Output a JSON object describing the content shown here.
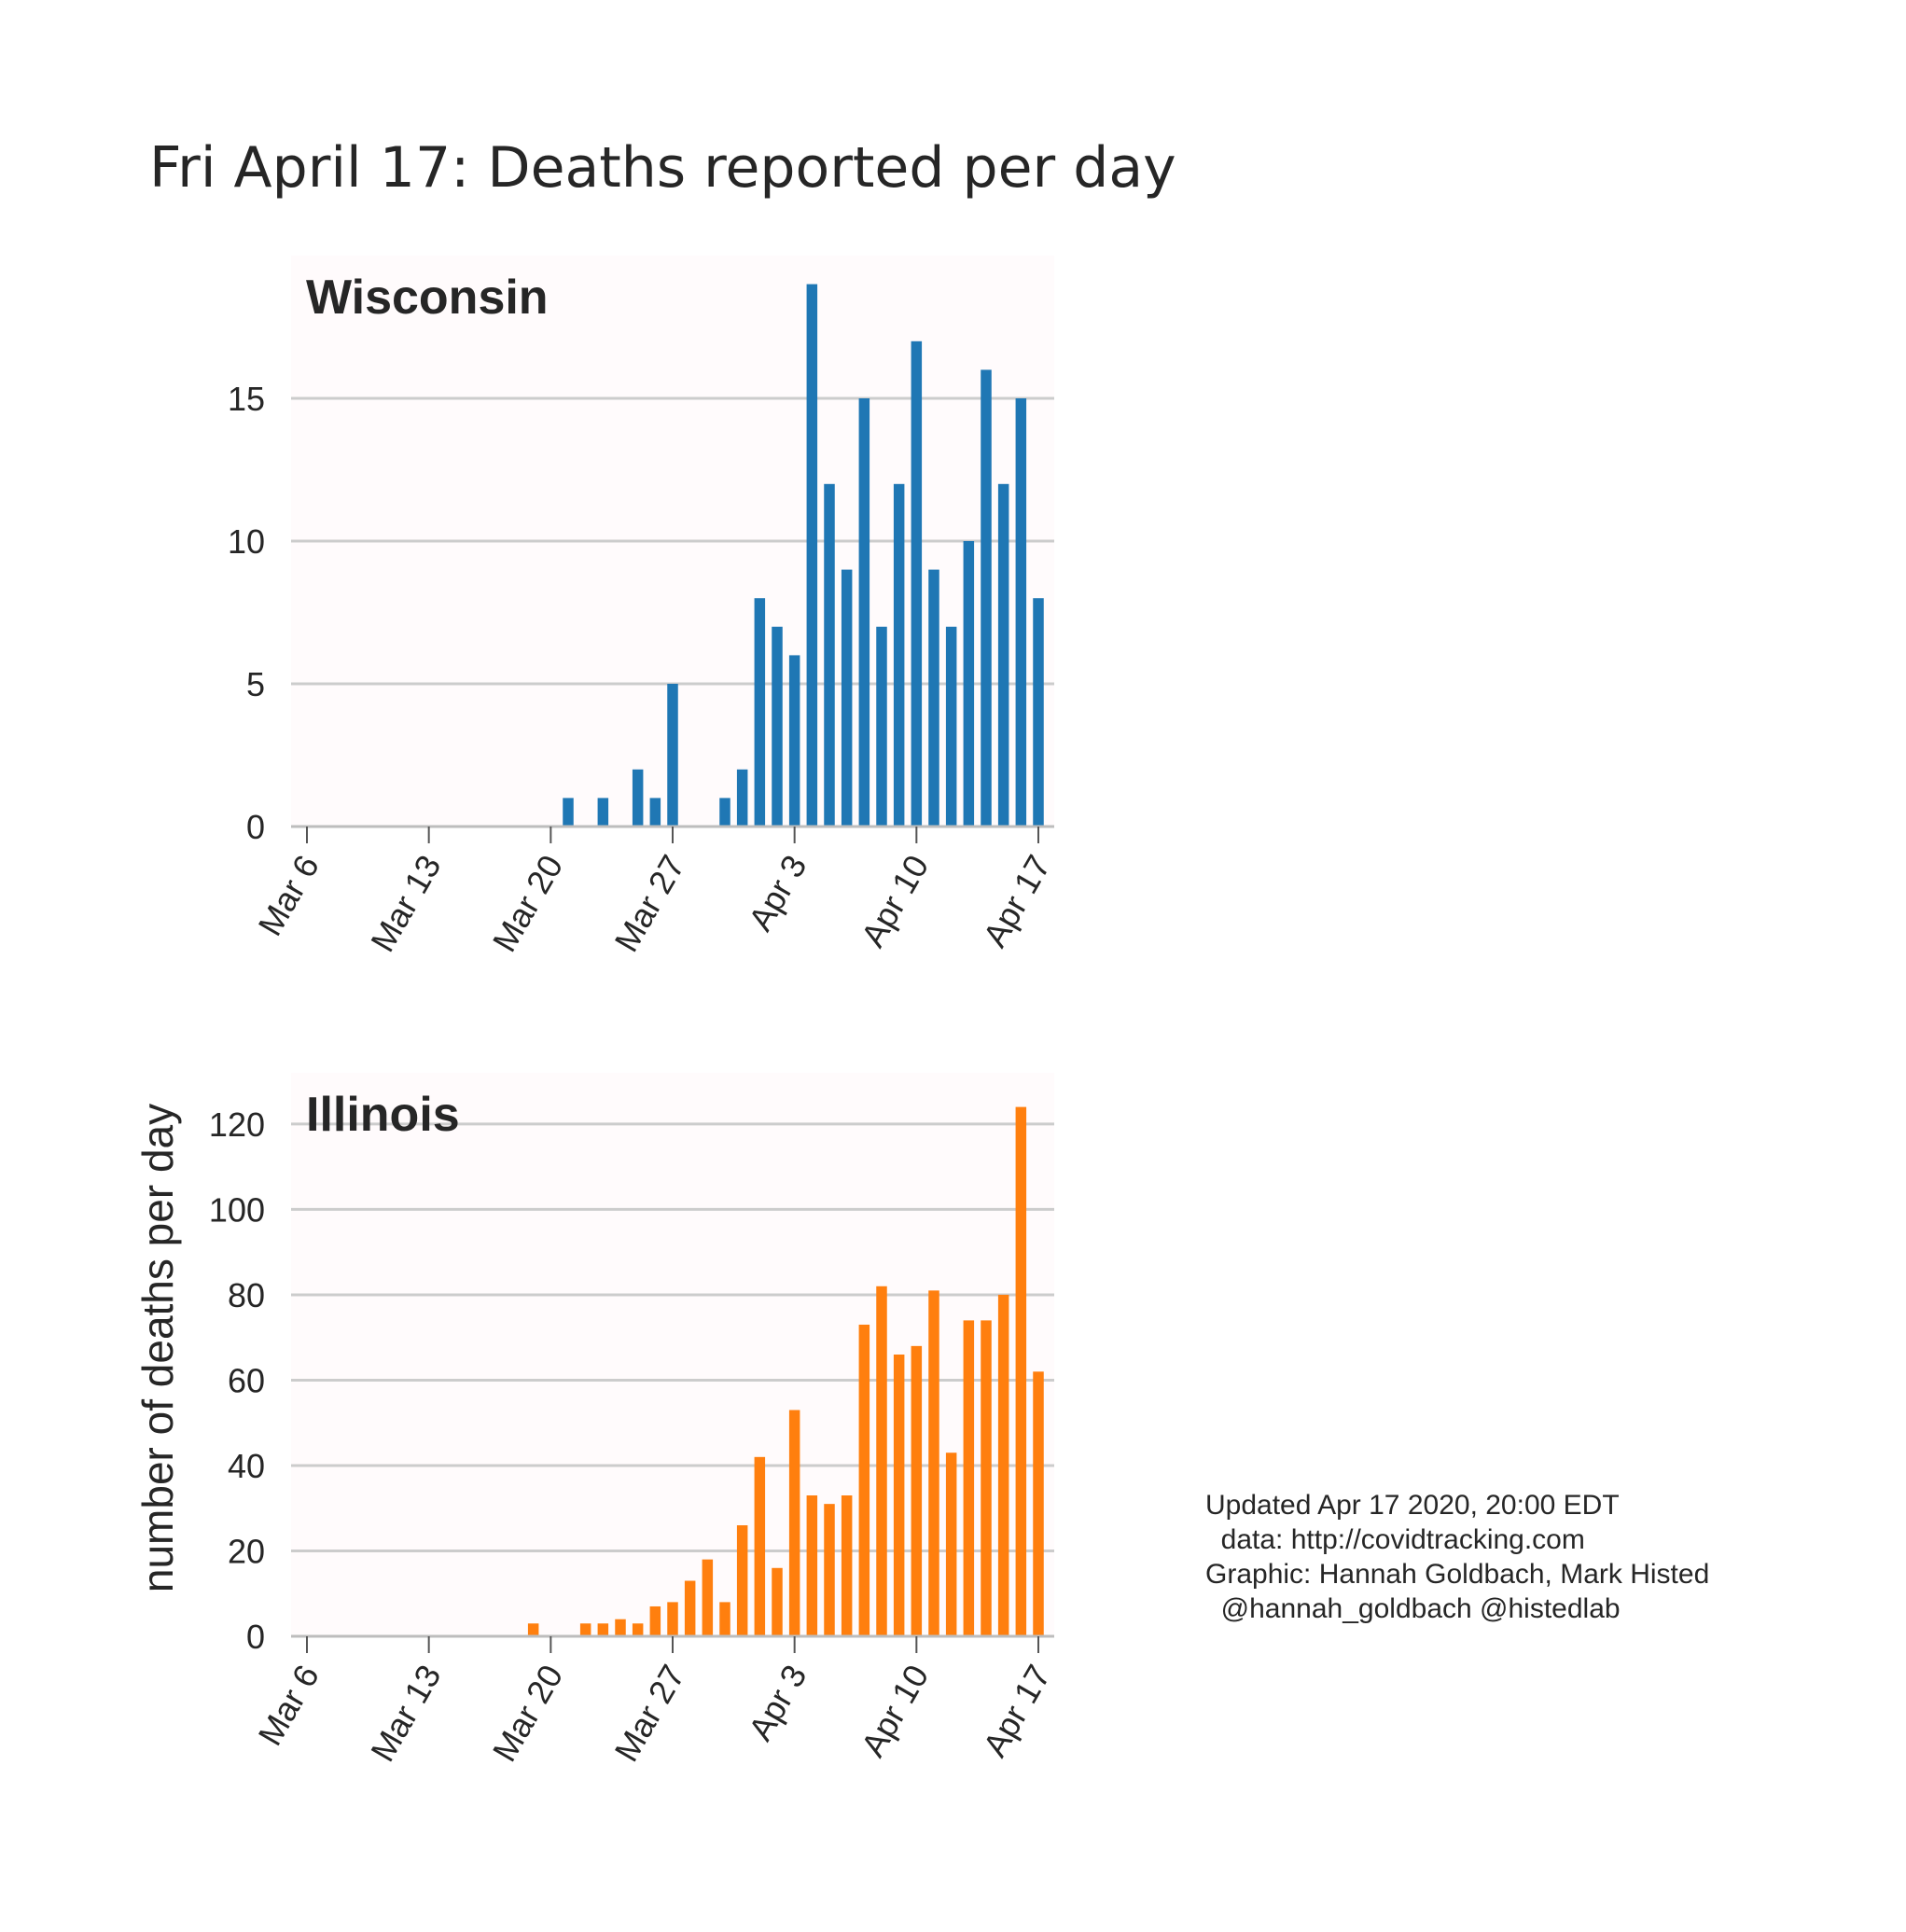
{
  "title": "Fri April 17: Deaths reported per day",
  "ylabel": "number of deaths per day",
  "credits": [
    "Updated Apr 17 2020, 20:00 EDT",
    "  data: http://covidtracking.com",
    "Graphic: Hannah Goldbach, Mark Histed",
    "  @hannah_goldbach @histedlab"
  ],
  "chart_data": [
    {
      "type": "bar",
      "title": "Wisconsin",
      "color": "#1f77b4",
      "background": "#fffbfc",
      "x": [
        "Mar 6",
        "Mar 7",
        "Mar 8",
        "Mar 9",
        "Mar 10",
        "Mar 11",
        "Mar 12",
        "Mar 13",
        "Mar 14",
        "Mar 15",
        "Mar 16",
        "Mar 17",
        "Mar 18",
        "Mar 19",
        "Mar 20",
        "Mar 21",
        "Mar 22",
        "Mar 23",
        "Mar 24",
        "Mar 25",
        "Mar 26",
        "Mar 27",
        "Mar 28",
        "Mar 29",
        "Mar 30",
        "Mar 31",
        "Apr 1",
        "Apr 2",
        "Apr 3",
        "Apr 4",
        "Apr 5",
        "Apr 6",
        "Apr 7",
        "Apr 8",
        "Apr 9",
        "Apr 10",
        "Apr 11",
        "Apr 12",
        "Apr 13",
        "Apr 14",
        "Apr 15",
        "Apr 16",
        "Apr 17"
      ],
      "values": [
        0,
        0,
        0,
        0,
        0,
        0,
        0,
        0,
        0,
        0,
        0,
        0,
        0,
        0,
        0,
        1,
        0,
        1,
        0,
        2,
        1,
        5,
        0,
        0,
        1,
        2,
        8,
        7,
        6,
        19,
        12,
        9,
        15,
        7,
        12,
        17,
        9,
        7,
        10,
        16,
        12,
        15,
        8
      ],
      "xticks": [
        "Mar 6",
        "Mar 13",
        "Mar 20",
        "Mar 27",
        "Apr 3",
        "Apr 10",
        "Apr 17"
      ],
      "yticks": [
        0,
        5,
        10,
        15
      ],
      "ylim": [
        0,
        20
      ],
      "grid": true
    },
    {
      "type": "bar",
      "title": "Illinois",
      "color": "#ff7f0e",
      "background": "#fffbfc",
      "x": [
        "Mar 6",
        "Mar 7",
        "Mar 8",
        "Mar 9",
        "Mar 10",
        "Mar 11",
        "Mar 12",
        "Mar 13",
        "Mar 14",
        "Mar 15",
        "Mar 16",
        "Mar 17",
        "Mar 18",
        "Mar 19",
        "Mar 20",
        "Mar 21",
        "Mar 22",
        "Mar 23",
        "Mar 24",
        "Mar 25",
        "Mar 26",
        "Mar 27",
        "Mar 28",
        "Mar 29",
        "Mar 30",
        "Mar 31",
        "Apr 1",
        "Apr 2",
        "Apr 3",
        "Apr 4",
        "Apr 5",
        "Apr 6",
        "Apr 7",
        "Apr 8",
        "Apr 9",
        "Apr 10",
        "Apr 11",
        "Apr 12",
        "Apr 13",
        "Apr 14",
        "Apr 15",
        "Apr 16",
        "Apr 17"
      ],
      "values": [
        0,
        0,
        0,
        0,
        0,
        0,
        0,
        0,
        0,
        0,
        0,
        0,
        0,
        3,
        0,
        0,
        3,
        3,
        4,
        3,
        7,
        8,
        13,
        18,
        8,
        26,
        42,
        16,
        53,
        33,
        31,
        33,
        73,
        82,
        66,
        68,
        81,
        43,
        74,
        74,
        80,
        124,
        62
      ],
      "xticks": [
        "Mar 6",
        "Mar 13",
        "Mar 20",
        "Mar 27",
        "Apr 3",
        "Apr 10",
        "Apr 17"
      ],
      "yticks": [
        0,
        20,
        40,
        60,
        80,
        100,
        120
      ],
      "ylim": [
        0,
        132
      ],
      "grid": true
    }
  ]
}
